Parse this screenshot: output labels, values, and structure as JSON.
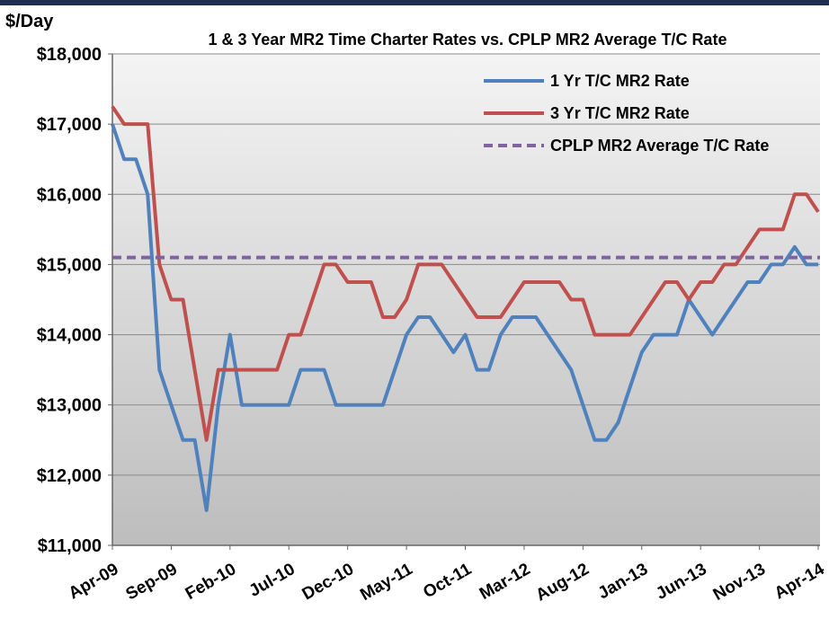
{
  "chart_data": {
    "type": "line",
    "title": "1 & 3 Year MR2 Time Charter Rates vs. CPLP MR2 Average T/C Rate",
    "y_axis_label": "$/Day",
    "categories": [
      "Apr-09",
      null,
      null,
      null,
      null,
      "Sep-09",
      null,
      null,
      null,
      null,
      "Feb-10",
      null,
      null,
      null,
      null,
      "Jul-10",
      null,
      null,
      null,
      null,
      "Dec-10",
      null,
      null,
      null,
      null,
      "May-11",
      null,
      null,
      null,
      null,
      "Oct-11",
      null,
      null,
      null,
      null,
      "Mar-12",
      null,
      null,
      null,
      null,
      "Aug-12",
      null,
      null,
      null,
      null,
      "Jan-13",
      null,
      null,
      null,
      null,
      "Jun-13",
      null,
      null,
      null,
      null,
      "Nov-13",
      null,
      null,
      null,
      null,
      "Apr-14"
    ],
    "series": [
      {
        "name": "1 Yr T/C MR2 Rate",
        "color": "#4f81bd",
        "values": [
          17000,
          16500,
          16500,
          16000,
          13500,
          13000,
          12500,
          12500,
          11500,
          13000,
          14000,
          13000,
          13000,
          13000,
          13000,
          13000,
          13500,
          13500,
          13500,
          13000,
          13000,
          13000,
          13000,
          13000,
          13500,
          14000,
          14250,
          14250,
          14000,
          13750,
          14000,
          13500,
          13500,
          14000,
          14250,
          14250,
          14250,
          14000,
          13750,
          13500,
          13000,
          12500,
          12500,
          12750,
          13250,
          13750,
          14000,
          14000,
          14000,
          14500,
          14250,
          14000,
          14250,
          14500,
          14750,
          14750,
          15000,
          15000,
          15250,
          15000,
          15000
        ]
      },
      {
        "name": "3 Yr T/C MR2 Rate",
        "color": "#c0504d",
        "values": [
          17250,
          17000,
          17000,
          17000,
          15000,
          14500,
          14500,
          13500,
          12500,
          13500,
          13500,
          13500,
          13500,
          13500,
          13500,
          14000,
          14000,
          14500,
          15000,
          15000,
          14750,
          14750,
          14750,
          14250,
          14250,
          14500,
          15000,
          15000,
          15000,
          14750,
          14500,
          14250,
          14250,
          14250,
          14500,
          14750,
          14750,
          14750,
          14750,
          14500,
          14500,
          14000,
          14000,
          14000,
          14000,
          14250,
          14500,
          14750,
          14750,
          14500,
          14750,
          14750,
          15000,
          15000,
          15250,
          15500,
          15500,
          15500,
          16000,
          16000,
          15750
        ]
      },
      {
        "name": "CPLP MR2 Average T/C Rate",
        "color": "#8064a2",
        "value": 15100,
        "dashed": true
      }
    ],
    "ylim": [
      11000,
      18000
    ],
    "yticks": [
      {
        "value": 11000,
        "label": "$11,000"
      },
      {
        "value": 12000,
        "label": "$12,000"
      },
      {
        "value": 13000,
        "label": "$13,000"
      },
      {
        "value": 14000,
        "label": "$14,000"
      },
      {
        "value": 15000,
        "label": "$15,000"
      },
      {
        "value": 16000,
        "label": "$16,000"
      },
      {
        "value": 17000,
        "label": "$17,000"
      },
      {
        "value": 18000,
        "label": "$18,000"
      }
    ],
    "grid": true,
    "legend": "top-right"
  }
}
